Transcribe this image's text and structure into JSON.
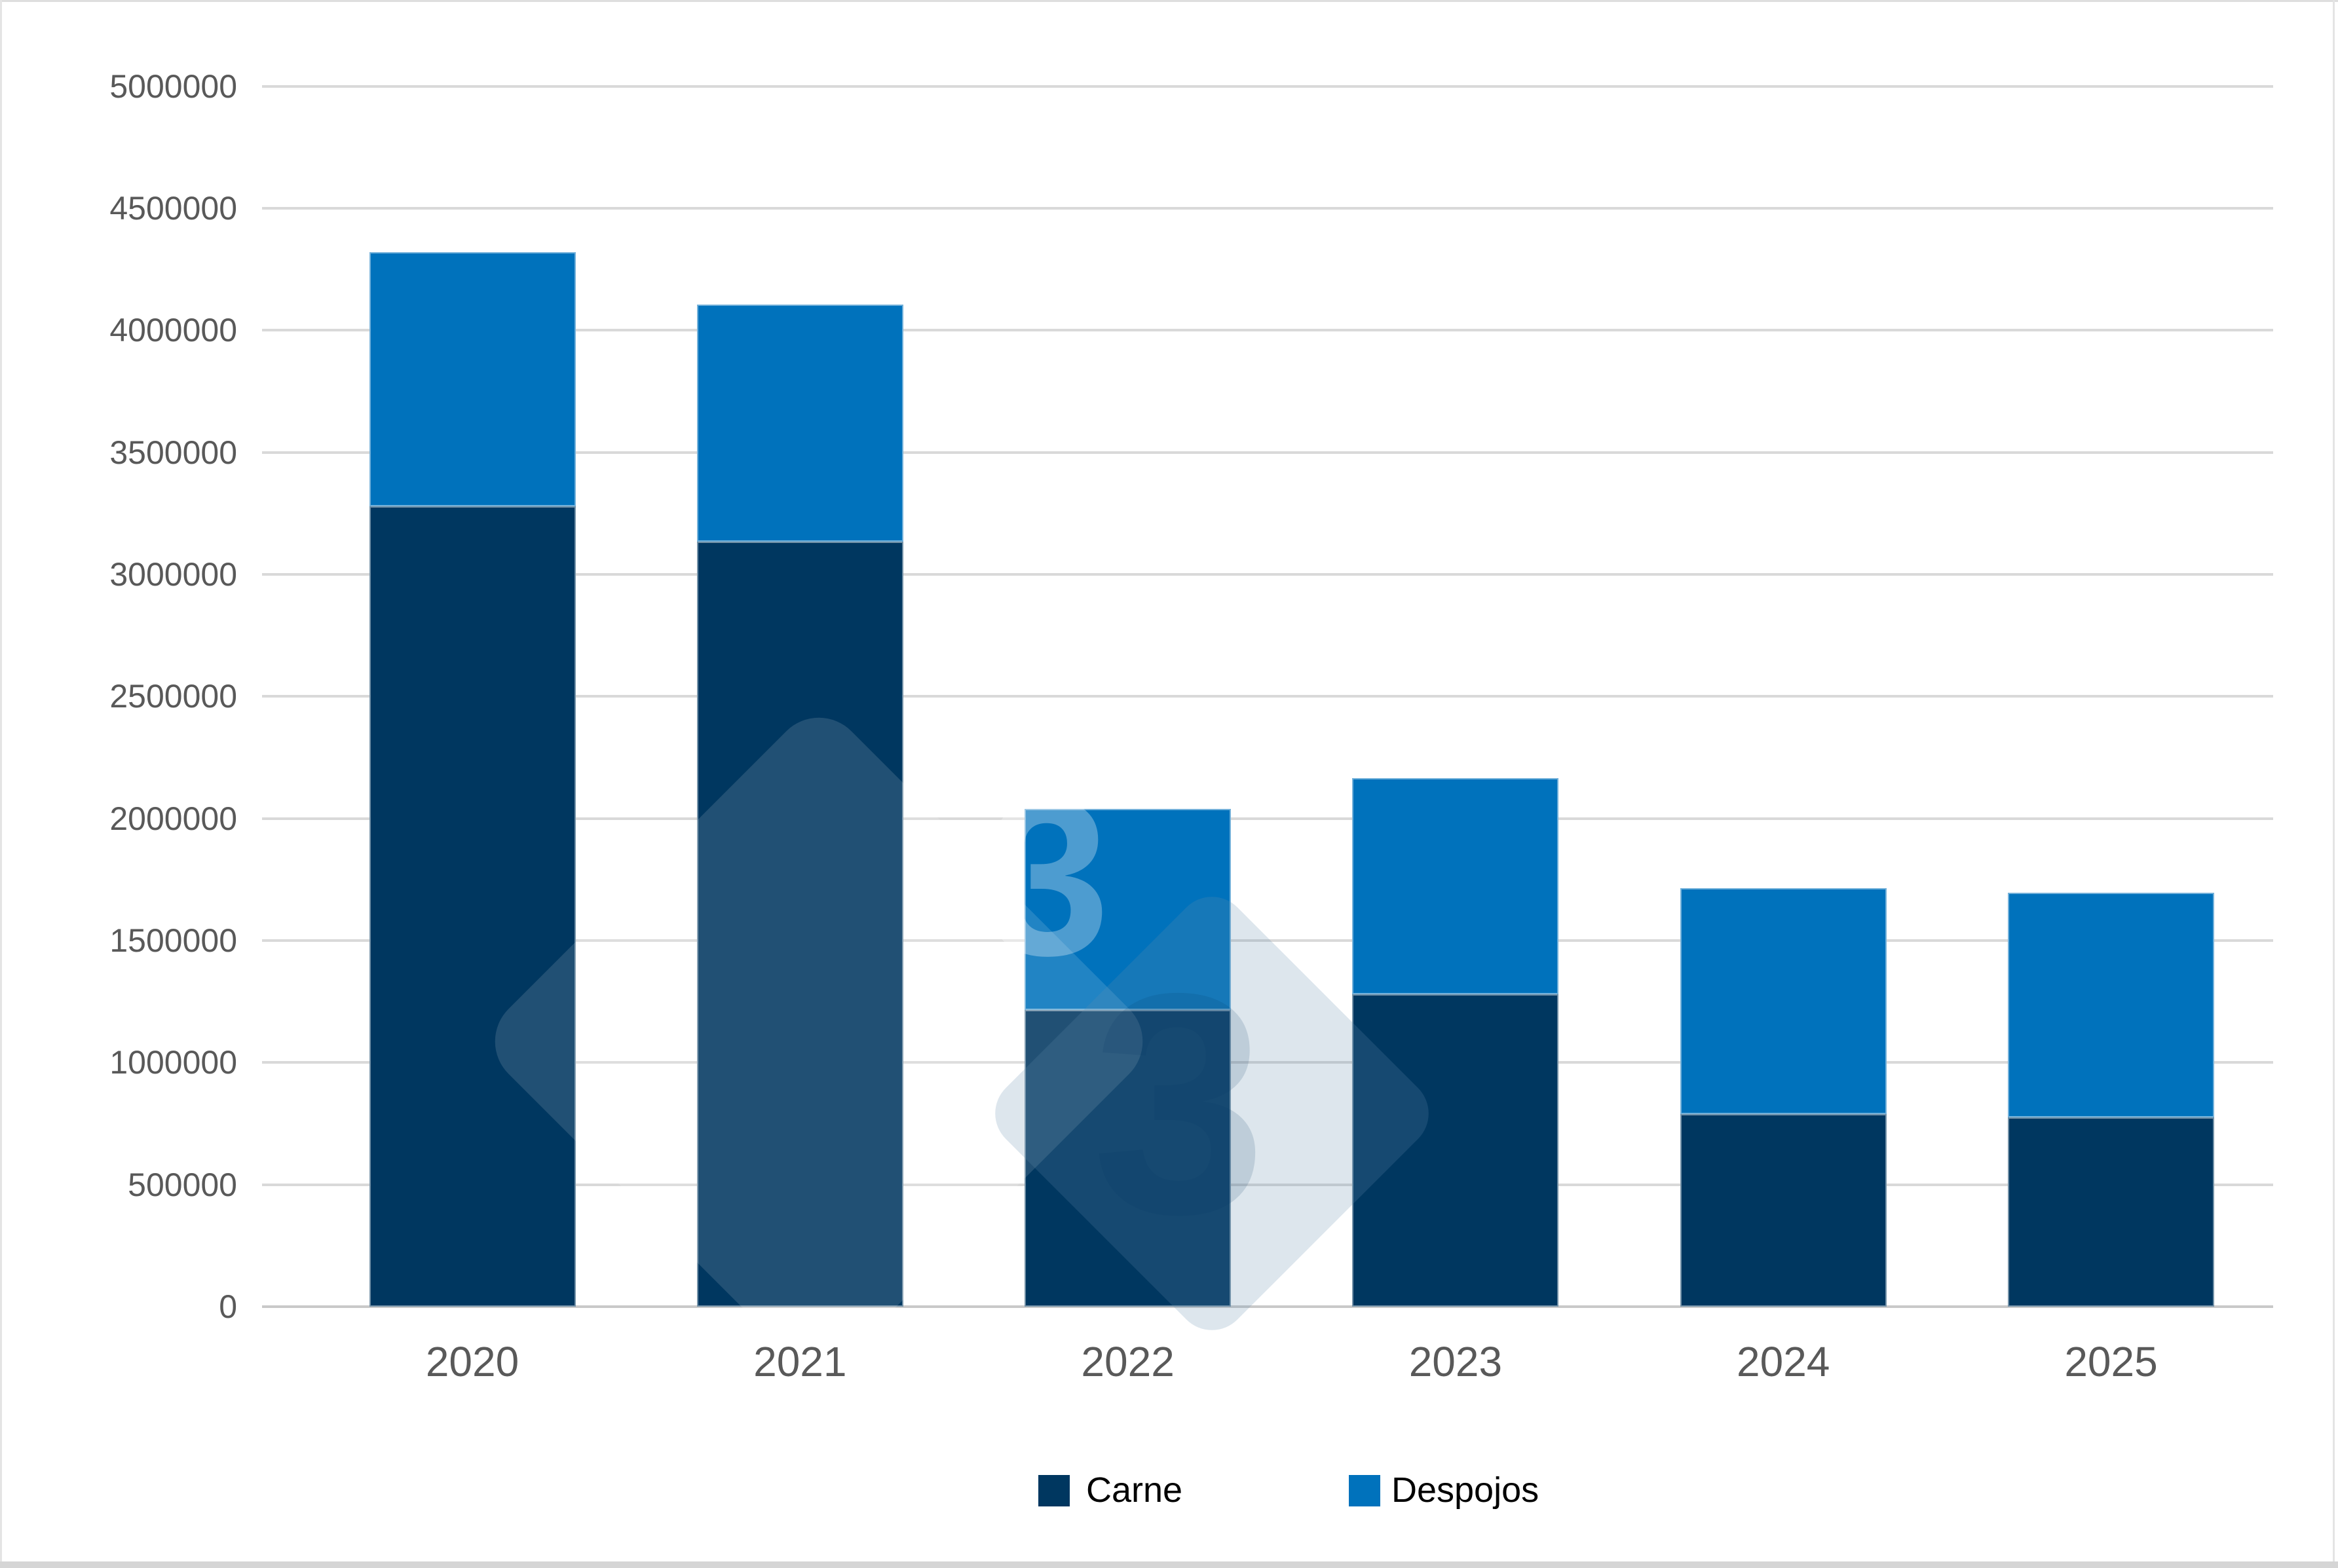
{
  "chart_data": {
    "type": "bar",
    "stacked": true,
    "title": "",
    "xlabel": "",
    "ylabel": "",
    "categories": [
      "2020",
      "2021",
      "2022",
      "2023",
      "2024",
      "2025"
    ],
    "series": [
      {
        "name": "Carne",
        "color": "#003760",
        "values": [
          3280000,
          3135000,
          1215000,
          1280000,
          790000,
          775000
        ]
      },
      {
        "name": "Despojos",
        "color": "#0072BC",
        "values": [
          1040000,
          970000,
          825000,
          885000,
          925000,
          920000
        ]
      }
    ],
    "totals": [
      4320000,
      4105000,
      2040000,
      2165000,
      1715000,
      1695000
    ],
    "ylim": [
      0,
      5000000
    ],
    "ytick_step": 500000,
    "ytick_labels": [
      "0",
      "500000",
      "1000000",
      "1500000",
      "2000000",
      "2500000",
      "3000000",
      "3500000",
      "4000000",
      "4500000",
      "5000000"
    ],
    "grid": "horizontal",
    "legend_position": "bottom"
  },
  "legend": {
    "items": [
      {
        "label": "Carne",
        "color": "#003760"
      },
      {
        "label": "Despojos",
        "color": "#0072BC"
      }
    ]
  },
  "watermark": {
    "text": "3"
  },
  "colors": {
    "carne": "#003760",
    "despojos": "#0072BC",
    "gridline": "#d9d9d9",
    "axis_text": "#595959",
    "legend_text": "#000000",
    "background": "#ffffff"
  }
}
